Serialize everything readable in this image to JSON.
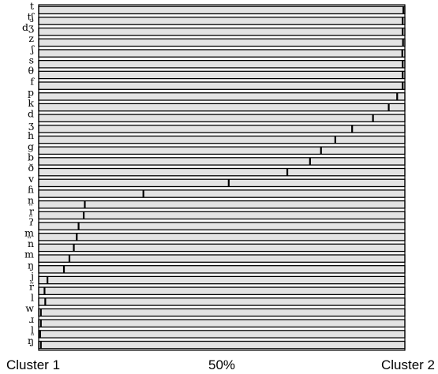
{
  "chart_data": {
    "type": "bar",
    "orientation": "horizontal",
    "x_range": [
      0,
      100
    ],
    "x_ticks": [
      {
        "value": 0,
        "label": "Cluster 1"
      },
      {
        "value": 50,
        "label": "50%"
      },
      {
        "value": 100,
        "label": "Cluster 2"
      }
    ],
    "categories": [
      "t",
      "tʃ",
      "dʒ",
      "z",
      "ʃ",
      "s",
      "θ",
      "f",
      "p",
      "k",
      "d",
      "ʒ",
      "h",
      "g",
      "b",
      "ð",
      "v",
      "ɦ",
      "n̤",
      "r̤",
      "ʔ",
      "m̤",
      "n",
      "m",
      "ŋ",
      "j",
      "r̃",
      "l",
      "w",
      "ɹ",
      "l̤",
      "ŋ̤"
    ],
    "values": [
      99.6,
      99.4,
      99.4,
      99.5,
      99.3,
      99.4,
      99.4,
      99.4,
      97.9,
      95.6,
      91.3,
      85.6,
      81.0,
      77.1,
      74.1,
      67.9,
      51.9,
      28.6,
      12.6,
      12.3,
      10.9,
      10.4,
      9.6,
      8.4,
      6.9,
      2.4,
      1.6,
      1.8,
      0.6,
      0.6,
      0.4,
      0.6
    ]
  }
}
